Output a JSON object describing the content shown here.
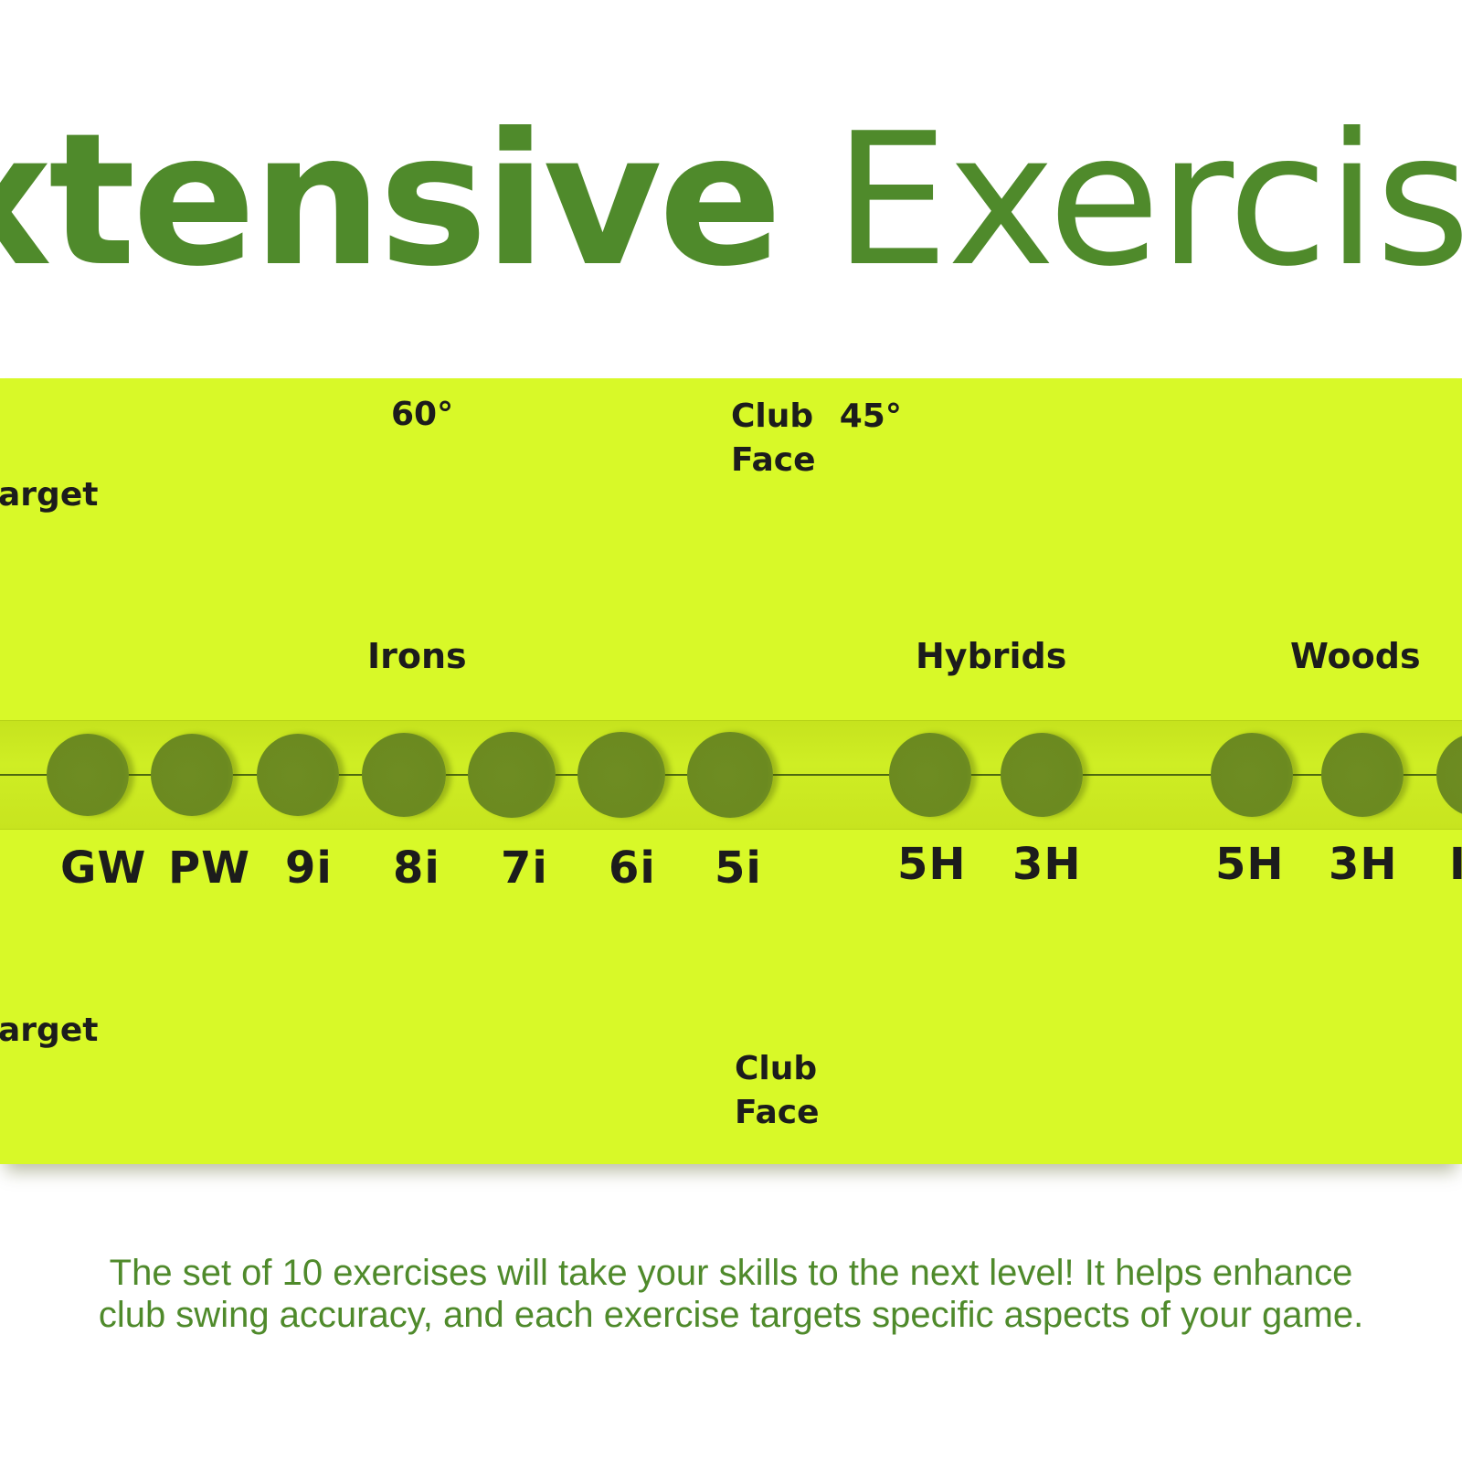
{
  "colors": {
    "title": "#4f8a2b",
    "board": "#d8f928",
    "hole": "#6b8a20",
    "caption": "#4f8a2b"
  },
  "title": {
    "bold": "xtensive",
    "light": "Exercise"
  },
  "board": {
    "angle_60": "60°",
    "club_face_top_line1": "Club",
    "club_face_top_angle": "45°",
    "club_face_top_line2": "Face",
    "target_top": "arget",
    "target_bottom": "arget",
    "club_face_bottom_line1": "Club",
    "club_face_bottom_line2": "Face",
    "groups": {
      "irons": "Irons",
      "hybrids": "Hybrids",
      "woods": "Woods"
    },
    "clubs": [
      "GW",
      "PW",
      "9i",
      "8i",
      "7i",
      "6i",
      "5i",
      "5H",
      "3H",
      "5H",
      "3H",
      "I"
    ]
  },
  "caption": "The set of 10 exercises will take your skills to the next level! It helps enhance club swing accuracy, and each exercise targets specific aspects of your game."
}
